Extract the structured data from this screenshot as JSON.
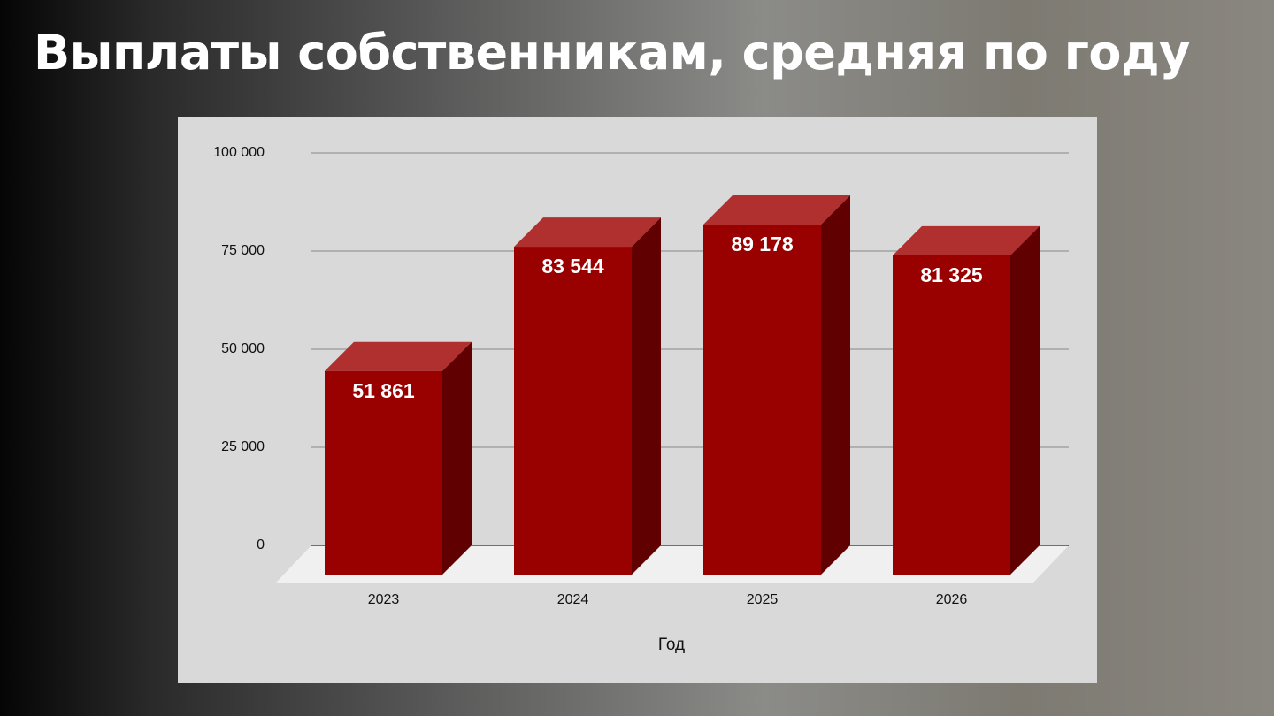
{
  "chart_data": {
    "type": "bar",
    "title": "Выплаты собственникам, средняя по году",
    "x_label": "Год",
    "categories": [
      "2023",
      "2024",
      "2025",
      "2026"
    ],
    "values": [
      51861,
      83544,
      89178,
      81325
    ],
    "value_labels": [
      "51 861",
      "83 544",
      "89 178",
      "81 325"
    ],
    "color": "#990000",
    "ylim": [
      0,
      100000
    ],
    "yticks": [
      0,
      {
        "value": 25000,
        "label": "25 000"
      },
      {
        "value": 50000,
        "label": "50 000"
      },
      {
        "value": 75000,
        "label": "75 000"
      },
      {
        "value": 100000,
        "label": "100 000"
      }
    ],
    "grid": true
  }
}
